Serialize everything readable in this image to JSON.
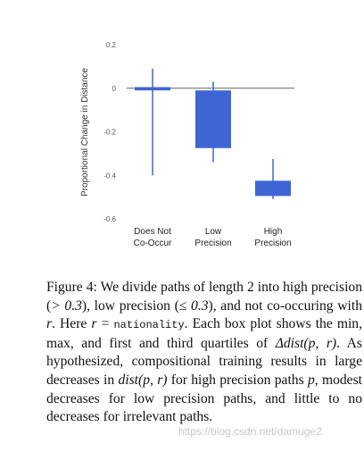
{
  "chart_data": {
    "type": "box",
    "ylabel": "Proportional Change in Distance",
    "ylim": [
      -0.6,
      0.2
    ],
    "y_ticks": [
      "0.2",
      "0",
      "-0.2",
      "-0.4",
      "-0.6"
    ],
    "y_tick_values": [
      0.2,
      0,
      -0.2,
      -0.4,
      -0.6
    ],
    "zero_line": true,
    "grid": false,
    "box_color": "#3f65d4",
    "categories": [
      {
        "line1": "Does Not",
        "line2": "Co-Occur",
        "min": -0.4,
        "q1": -0.01,
        "q3": 0.005,
        "max": 0.09
      },
      {
        "line1": "Low",
        "line2": "Precision",
        "min": -0.34,
        "q1": -0.275,
        "q3": -0.01,
        "max": 0.03
      },
      {
        "line1": "High",
        "line2": "Precision",
        "min": -0.51,
        "q1": -0.495,
        "q3": -0.425,
        "max": -0.325
      }
    ]
  },
  "caption": {
    "p1": "Figure 4:  We divide paths of length 2 into high precision (",
    "m1": "> 0.3",
    "p2": "), low precision (",
    "m2": "≤ 0.3",
    "p3": "), and not co-occuring with ",
    "m3": "r",
    "p4": ". Here ",
    "m4": "r",
    "p5": " = ",
    "code": "nationality",
    "p6": ". Each box plot shows the min, max, and first and third quartiles of ",
    "m5": "Δdist(p, r)",
    "p7": ".  As hypothesized, compositional training results in large decreases in ",
    "m6": "dist(p, r)",
    "p8": " for high precision paths ",
    "m7": "p",
    "p9": ", modest decreases for low precision paths, and little to no decreases for irrelevant paths."
  },
  "watermark": "https://blog.csdn.net/damuge2"
}
